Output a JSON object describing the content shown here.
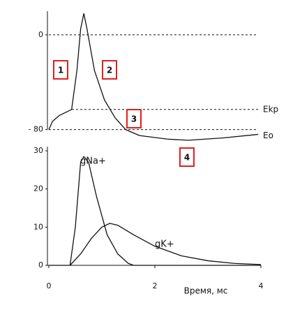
{
  "chart_data": [
    {
      "type": "line",
      "yticks": [
        0,
        {
          "value": -80,
          "label": "- 80"
        }
      ],
      "xlim": [
        0,
        4
      ],
      "ylim": [
        -92,
        20
      ],
      "reference_lines": [
        {
          "value": 0
        },
        {
          "value": -63,
          "label": "Ekp"
        },
        {
          "value": -80,
          "label": "Eo"
        }
      ],
      "annotations": [
        "1",
        "2",
        "3",
        "4"
      ],
      "series": [
        {
          "color": "#111111",
          "x": [
            0,
            0.07,
            0.2,
            0.43,
            0.53,
            0.6,
            0.66,
            0.72,
            0.86,
            1.05,
            1.25,
            1.45,
            1.71,
            2.24,
            2.63,
            3.29,
            3.95
          ],
          "values": [
            -80,
            -73,
            -68,
            -63,
            -30,
            5,
            18,
            5,
            -30,
            -55,
            -70,
            -80,
            -85,
            -88,
            -89,
            -87,
            -84
          ]
        }
      ]
    },
    {
      "type": "line",
      "xlabel": "Время, мс",
      "xlim": [
        0,
        4
      ],
      "ylim": [
        0,
        30
      ],
      "xticks": [
        0,
        2,
        4
      ],
      "yticks": [
        0,
        10,
        20,
        30
      ],
      "series": [
        {
          "name": "gNa+",
          "color": "#111111",
          "x": [
            0,
            0.4,
            0.5,
            0.6,
            0.66,
            0.75,
            0.9,
            1.1,
            1.3,
            1.5,
            1.6,
            4
          ],
          "values": [
            0,
            0,
            10,
            27,
            28.5,
            27,
            18,
            8,
            3,
            0.5,
            0,
            0
          ]
        },
        {
          "name": "gK+",
          "color": "#111111",
          "x": [
            0.4,
            0.6,
            0.8,
            1.0,
            1.15,
            1.3,
            1.6,
            2.0,
            2.5,
            3.0,
            3.5,
            4.0
          ],
          "values": [
            0,
            3,
            7,
            10,
            11,
            10.5,
            8,
            5,
            2.5,
            1.2,
            0.5,
            0.2
          ]
        }
      ]
    }
  ]
}
